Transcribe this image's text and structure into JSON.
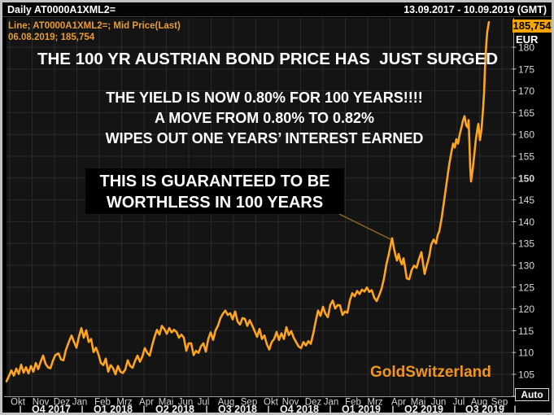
{
  "window": {
    "title_left": "Daily AT0000A1XML2=",
    "title_right": "13.09.2017 - 10.09.2019 (GMT)"
  },
  "legend": {
    "line1": "Line; AT0000A1XML2=; Mid Price(Last)",
    "line2": "06.08.2019; 185,754"
  },
  "price_flag": {
    "value": "185,754",
    "currency": "EUR"
  },
  "auto_button_label": "Auto",
  "annotations": {
    "headline": "THE 100 YR AUSTRIAN BOND PRICE HAS  JUST SURGED",
    "yield_line1": "THE YIELD IS NOW 0.80% FOR 100 YEARS!!!!",
    "yield_line2": "A MOVE FROM 0.80% TO 0.82%",
    "yield_line3": "WIPES OUT ONE YEARS’ INTEREST EARNED",
    "box_line1": "THIS IS GUARANTEED TO BE",
    "box_line2": "WORTHLESS IN 100 YEARS",
    "watermark": "GoldSwitzerland"
  },
  "colors": {
    "line": "#ffa41e",
    "price_flag_bg": "#f7a600",
    "legend_text": "#e59b36",
    "watermark_text": "#f2951d",
    "plot_bg": "#141414",
    "grid": "#2a2a2a",
    "axis": "#9b9b9b",
    "tick_text": "#d6d6d6"
  },
  "chart_data": {
    "type": "line",
    "interval": "Daily",
    "instrument": "AT0000A1XML2=",
    "field": "Mid Price(Last)",
    "date_range": "13.09.2017 - 10.09.2019 (GMT)",
    "currency": "EUR",
    "last_date": "06.08.2019",
    "last_price": 185.754,
    "ylim": [
      100,
      186
    ],
    "y_ticks": [
      105,
      110,
      115,
      120,
      125,
      130,
      135,
      140,
      145,
      150,
      155,
      160,
      165,
      170,
      175,
      180
    ],
    "x_month_labels": [
      "Okt",
      "Nov",
      "Dez",
      "Jan",
      "Feb",
      "Mrz",
      "Apr",
      "Mai",
      "Jun",
      "Jul",
      "Aug",
      "Sep",
      "Okt",
      "Nov",
      "Dez",
      "Jan",
      "Feb",
      "Mrz",
      "Apr",
      "Mai",
      "Jun",
      "Jul",
      "Aug",
      "Sep"
    ],
    "x_quarter_labels": [
      "Q4 2017",
      "Q1 2018",
      "Q2 2018",
      "Q3 2018",
      "Q4 2018",
      "Q1 2019",
      "Q2 2019",
      "Q3 2019"
    ],
    "x_unit": "plot_pixels_sep2017_to_sep2019",
    "series": [
      {
        "name": "AT0000A1XML2= Mid Price(Last)",
        "points": [
          [
            8,
            103.4
          ],
          [
            11,
            104.6
          ],
          [
            14,
            105.9
          ],
          [
            17,
            104.7
          ],
          [
            20,
            106.3
          ],
          [
            23,
            105.1
          ],
          [
            26,
            107.2
          ],
          [
            29,
            105.4
          ],
          [
            32,
            106.6
          ],
          [
            35,
            105.2
          ],
          [
            38,
            106.9
          ],
          [
            41,
            105.6
          ],
          [
            44,
            107.6
          ],
          [
            47,
            106.2
          ],
          [
            50,
            107.9
          ],
          [
            53,
            109.3
          ],
          [
            56,
            107.4
          ],
          [
            59,
            106.6
          ],
          [
            62,
            106.4
          ],
          [
            65,
            108.1
          ],
          [
            68,
            109.4
          ],
          [
            72,
            109.8
          ],
          [
            75,
            108.4
          ],
          [
            78,
            108.2
          ],
          [
            81,
            110.6
          ],
          [
            85,
            112.6
          ],
          [
            88,
            113.9
          ],
          [
            91,
            112.4
          ],
          [
            94,
            111.1
          ],
          [
            97,
            113.6
          ],
          [
            100,
            115.6
          ],
          [
            103,
            113.4
          ],
          [
            106,
            115.1
          ],
          [
            109,
            112.4
          ],
          [
            112,
            113.1
          ],
          [
            115,
            110.1
          ],
          [
            118,
            111.1
          ],
          [
            121,
            109.6
          ],
          [
            124,
            107.6
          ],
          [
            127,
            107.1
          ],
          [
            130,
            108.6
          ],
          [
            133,
            105.6
          ],
          [
            136,
            107.1
          ],
          [
            139,
            106.4
          ],
          [
            142,
            105.0
          ],
          [
            145,
            106.9
          ],
          [
            148,
            105.6
          ],
          [
            151,
            105.3
          ],
          [
            154,
            106.1
          ],
          [
            157,
            108.2
          ],
          [
            160,
            106.9
          ],
          [
            163,
            106.5
          ],
          [
            166,
            108.1
          ],
          [
            169,
            109.3
          ],
          [
            172,
            107.9
          ],
          [
            175,
            109.1
          ],
          [
            178,
            111.0
          ],
          [
            181,
            109.9
          ],
          [
            184,
            109.3
          ],
          [
            187,
            111.6
          ],
          [
            190,
            113.6
          ],
          [
            193,
            115.2
          ],
          [
            196,
            114.1
          ],
          [
            199,
            116.1
          ],
          [
            202,
            115.4
          ],
          [
            205,
            114.3
          ],
          [
            208,
            115.6
          ],
          [
            211,
            114.6
          ],
          [
            214,
            115.2
          ],
          [
            217,
            114.7
          ],
          [
            220,
            113.4
          ],
          [
            223,
            114.1
          ],
          [
            226,
            113.4
          ],
          [
            229,
            110.4
          ],
          [
            232,
            112.1
          ],
          [
            235,
            112.1
          ],
          [
            238,
            109.4
          ],
          [
            241,
            110.4
          ],
          [
            244,
            109.9
          ],
          [
            247,
            111.4
          ],
          [
            250,
            112.1
          ],
          [
            253,
            110.2
          ],
          [
            256,
            113.1
          ],
          [
            259,
            114.6
          ],
          [
            262,
            112.9
          ],
          [
            265,
            115.1
          ],
          [
            268,
            116.2
          ],
          [
            271,
            117.9
          ],
          [
            274,
            118.9
          ],
          [
            277,
            119.6
          ],
          [
            280,
            118.6
          ],
          [
            283,
            119.0
          ],
          [
            286,
            117.6
          ],
          [
            289,
            119.4
          ],
          [
            292,
            117.1
          ],
          [
            295,
            116.4
          ],
          [
            298,
            117.9
          ],
          [
            301,
            117.7
          ],
          [
            304,
            116.1
          ],
          [
            307,
            117.4
          ],
          [
            310,
            116.2
          ],
          [
            313,
            114.9
          ],
          [
            316,
            113.6
          ],
          [
            319,
            115.4
          ],
          [
            322,
            113.1
          ],
          [
            325,
            113.9
          ],
          [
            328,
            111.9
          ],
          [
            331,
            110.7
          ],
          [
            334,
            112.4
          ],
          [
            337,
            113.1
          ],
          [
            340,
            114.7
          ],
          [
            343,
            112.9
          ],
          [
            346,
            114.4
          ],
          [
            349,
            113.1
          ],
          [
            352,
            115.8
          ],
          [
            355,
            114.0
          ],
          [
            358,
            114.9
          ],
          [
            361,
            113.4
          ],
          [
            364,
            112.4
          ],
          [
            367,
            111.4
          ],
          [
            370,
            111.0
          ],
          [
            373,
            112.4
          ],
          [
            376,
            111.6
          ],
          [
            379,
            112.6
          ],
          [
            382,
            112.0
          ],
          [
            385,
            114.3
          ],
          [
            388,
            117.1
          ],
          [
            391,
            119.6
          ],
          [
            394,
            118.4
          ],
          [
            397,
            120.5
          ],
          [
            400,
            118.9
          ],
          [
            403,
            118.1
          ],
          [
            406,
            120.9
          ],
          [
            409,
            121.9
          ],
          [
            412,
            120.1
          ],
          [
            415,
            120.9
          ],
          [
            418,
            120.8
          ],
          [
            421,
            118.6
          ],
          [
            424,
            119.4
          ],
          [
            427,
            119.1
          ],
          [
            430,
            121.9
          ],
          [
            433,
            123.6
          ],
          [
            436,
            122.9
          ],
          [
            439,
            124.1
          ],
          [
            442,
            123.4
          ],
          [
            445,
            124.4
          ],
          [
            448,
            124.0
          ],
          [
            451,
            124.9
          ],
          [
            454,
            123.9
          ],
          [
            457,
            124.3
          ],
          [
            460,
            122.6
          ],
          [
            463,
            121.8
          ],
          [
            466,
            123.1
          ],
          [
            469,
            124.6
          ],
          [
            472,
            127.0
          ],
          [
            475,
            130.2
          ],
          [
            478,
            132.6
          ],
          [
            481,
            135.4
          ],
          [
            482,
            136.2
          ],
          [
            484,
            134.1
          ],
          [
            486,
            132.4
          ],
          [
            488,
            131.1
          ],
          [
            490,
            132.6
          ],
          [
            492,
            131.1
          ],
          [
            494,
            130.2
          ],
          [
            496,
            131.6
          ],
          [
            498,
            129.4
          ],
          [
            500,
            127.0
          ],
          [
            503,
            126.8
          ],
          [
            506,
            128.9
          ],
          [
            509,
            129.9
          ],
          [
            512,
            129.4
          ],
          [
            515,
            131.4
          ],
          [
            518,
            133.0
          ],
          [
            520,
            130.4
          ],
          [
            522,
            128.0
          ],
          [
            524,
            129.6
          ],
          [
            526,
            130.9
          ],
          [
            528,
            132.4
          ],
          [
            530,
            134.7
          ],
          [
            533,
            135.9
          ],
          [
            536,
            135.0
          ],
          [
            538,
            136.9
          ],
          [
            540,
            137.8
          ],
          [
            543,
            140.9
          ],
          [
            546,
            144.9
          ],
          [
            549,
            148.9
          ],
          [
            552,
            152.9
          ],
          [
            555,
            156.1
          ],
          [
            557,
            157.9
          ],
          [
            559,
            157.0
          ],
          [
            561,
            158.9
          ],
          [
            563,
            157.9
          ],
          [
            565,
            159.9
          ],
          [
            567,
            161.4
          ],
          [
            569,
            163.1
          ],
          [
            571,
            164.2
          ],
          [
            573,
            162.1
          ],
          [
            575,
            161.6
          ],
          [
            576,
            163.3
          ],
          [
            577,
            158.4
          ],
          [
            578,
            152.4
          ],
          [
            579,
            149.2
          ],
          [
            581,
            151.9
          ],
          [
            583,
            155.4
          ],
          [
            585,
            158.9
          ],
          [
            587,
            161.4
          ],
          [
            588,
            162.4
          ],
          [
            590,
            158.7
          ],
          [
            592,
            161.4
          ],
          [
            594,
            166.4
          ],
          [
            595,
            169.4
          ],
          [
            596,
            174.4
          ],
          [
            597,
            178.4
          ],
          [
            598,
            181.4
          ],
          [
            599,
            183.6
          ],
          [
            601,
            185.75
          ]
        ]
      }
    ]
  }
}
